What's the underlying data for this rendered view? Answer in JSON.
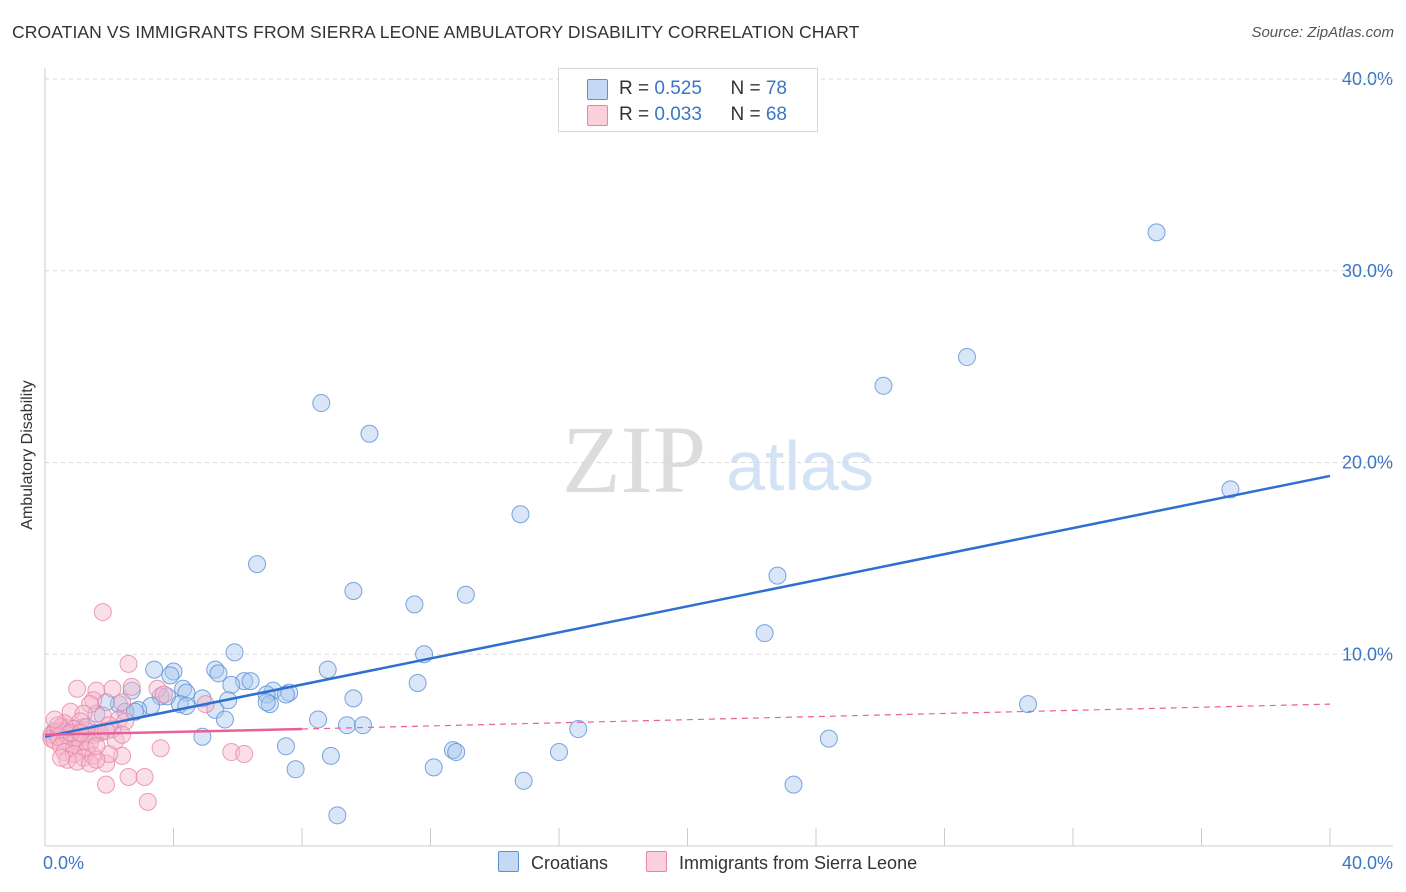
{
  "title": "CROATIAN VS IMMIGRANTS FROM SIERRA LEONE AMBULATORY DISABILITY CORRELATION CHART",
  "source": "Source: ZipAtlas.com",
  "watermark": {
    "zip": "ZIP",
    "atlas": "atlas"
  },
  "colors": {
    "blue_fill": "#a9c7ee",
    "blue_edge": "#5b8fd6",
    "blue_line": "#2e6fcf",
    "pink_fill": "#f6b8cc",
    "pink_edge": "#e984a6",
    "pink_line": "#e8609a",
    "axis_label": "#3a76c4",
    "grid": "#d9d9d9"
  },
  "legend": {
    "rows": [
      {
        "r_label": "R = ",
        "r_value": "0.525",
        "n_label": "N = ",
        "n_value": "78",
        "color": "blue"
      },
      {
        "r_label": "R = ",
        "r_value": "0.033",
        "n_label": "N = ",
        "n_value": "68",
        "color": "pink"
      }
    ]
  },
  "bottom_legend": [
    {
      "label": "Croatians",
      "color": "blue"
    },
    {
      "label": "Immigrants from Sierra Leone",
      "color": "pink"
    }
  ],
  "chart_data": {
    "type": "scatter",
    "title": "CROATIAN VS IMMIGRANTS FROM SIERRA LEONE AMBULATORY DISABILITY CORRELATION CHART",
    "xlabel": "",
    "ylabel": "Ambulatory Disability",
    "xlim": [
      0,
      40
    ],
    "ylim": [
      0,
      40
    ],
    "x_tick_labels": [
      {
        "value": 0,
        "label": "0.0%"
      },
      {
        "value": 40,
        "label": "40.0%"
      }
    ],
    "y_tick_labels": [
      {
        "value": 10,
        "label": "10.0%"
      },
      {
        "value": 20,
        "label": "20.0%"
      },
      {
        "value": 30,
        "label": "30.0%"
      },
      {
        "value": 40,
        "label": "40.0%"
      }
    ],
    "x_minor_ticks": [
      4,
      8,
      12,
      16,
      20,
      24,
      28,
      32,
      36,
      40
    ],
    "series": [
      {
        "name": "Croatians",
        "color": "blue",
        "R": 0.525,
        "N": 78,
        "trend": {
          "x": [
            0,
            40
          ],
          "y": [
            5.7,
            19.3
          ],
          "style": "solid"
        },
        "points": [
          [
            34.6,
            32.0
          ],
          [
            28.7,
            25.5
          ],
          [
            26.1,
            24.0
          ],
          [
            8.6,
            23.1
          ],
          [
            10.1,
            21.5
          ],
          [
            36.9,
            18.6
          ],
          [
            14.8,
            17.3
          ],
          [
            6.6,
            14.7
          ],
          [
            22.8,
            14.1
          ],
          [
            9.6,
            13.3
          ],
          [
            13.1,
            13.1
          ],
          [
            11.5,
            12.6
          ],
          [
            22.4,
            11.1
          ],
          [
            5.9,
            10.1
          ],
          [
            11.8,
            10.0
          ],
          [
            8.8,
            9.2
          ],
          [
            3.4,
            9.2
          ],
          [
            5.3,
            9.2
          ],
          [
            5.4,
            9.0
          ],
          [
            4.0,
            9.1
          ],
          [
            3.9,
            8.9
          ],
          [
            6.2,
            8.6
          ],
          [
            6.4,
            8.6
          ],
          [
            5.8,
            8.4
          ],
          [
            11.6,
            8.5
          ],
          [
            2.7,
            8.1
          ],
          [
            4.3,
            8.2
          ],
          [
            4.4,
            8.0
          ],
          [
            7.1,
            8.1
          ],
          [
            7.6,
            8.0
          ],
          [
            7.5,
            7.9
          ],
          [
            6.9,
            7.9
          ],
          [
            3.6,
            7.8
          ],
          [
            3.8,
            7.8
          ],
          [
            4.9,
            7.7
          ],
          [
            9.6,
            7.7
          ],
          [
            5.7,
            7.6
          ],
          [
            4.2,
            7.4
          ],
          [
            2.3,
            7.4
          ],
          [
            1.9,
            7.5
          ],
          [
            3.3,
            7.3
          ],
          [
            4.4,
            7.3
          ],
          [
            5.3,
            7.1
          ],
          [
            2.9,
            7.1
          ],
          [
            2.5,
            7.0
          ],
          [
            2.8,
            7.0
          ],
          [
            7.0,
            7.4
          ],
          [
            6.9,
            7.5
          ],
          [
            1.6,
            6.9
          ],
          [
            5.6,
            6.6
          ],
          [
            8.5,
            6.6
          ],
          [
            9.4,
            6.3
          ],
          [
            9.9,
            6.3
          ],
          [
            2.1,
            6.1
          ],
          [
            16.6,
            6.1
          ],
          [
            1.3,
            6.0
          ],
          [
            1.6,
            5.9
          ],
          [
            1.2,
            6.2
          ],
          [
            0.9,
            6.1
          ],
          [
            0.6,
            6.0
          ],
          [
            0.8,
            5.8
          ],
          [
            0.5,
            5.9
          ],
          [
            0.3,
            6.0
          ],
          [
            0.4,
            5.7
          ],
          [
            1.0,
            5.6
          ],
          [
            4.9,
            5.7
          ],
          [
            24.4,
            5.6
          ],
          [
            7.5,
            5.2
          ],
          [
            12.7,
            5.0
          ],
          [
            12.8,
            4.9
          ],
          [
            16.0,
            4.9
          ],
          [
            8.9,
            4.7
          ],
          [
            30.6,
            7.4
          ],
          [
            7.8,
            4.0
          ],
          [
            12.1,
            4.1
          ],
          [
            14.9,
            3.4
          ],
          [
            23.3,
            3.2
          ],
          [
            9.1,
            1.6
          ]
        ]
      },
      {
        "name": "Immigrants from Sierra Leone",
        "color": "pink",
        "R": 0.033,
        "N": 68,
        "trend": {
          "solid": {
            "x": [
              0,
              8
            ],
            "y": [
              5.8,
              6.1
            ]
          },
          "dashed": {
            "x": [
              8,
              40
            ],
            "y": [
              6.1,
              7.4
            ]
          }
        },
        "points": [
          [
            1.8,
            12.2
          ],
          [
            2.6,
            9.5
          ],
          [
            1.0,
            8.2
          ],
          [
            1.6,
            8.1
          ],
          [
            2.1,
            8.2
          ],
          [
            2.7,
            8.3
          ],
          [
            3.5,
            8.2
          ],
          [
            1.5,
            7.6
          ],
          [
            1.4,
            7.4
          ],
          [
            2.4,
            7.5
          ],
          [
            5.0,
            7.4
          ],
          [
            3.7,
            7.9
          ],
          [
            0.8,
            7.0
          ],
          [
            1.2,
            6.9
          ],
          [
            1.8,
            6.8
          ],
          [
            2.3,
            6.6
          ],
          [
            2.5,
            6.5
          ],
          [
            2.0,
            6.3
          ],
          [
            1.1,
            6.5
          ],
          [
            0.6,
            6.4
          ],
          [
            0.5,
            6.2
          ],
          [
            0.9,
            6.1
          ],
          [
            0.4,
            6.0
          ],
          [
            0.3,
            5.9
          ],
          [
            0.2,
            5.8
          ],
          [
            0.2,
            5.6
          ],
          [
            0.3,
            5.5
          ],
          [
            0.4,
            5.7
          ],
          [
            0.6,
            5.5
          ],
          [
            0.7,
            5.8
          ],
          [
            1.0,
            5.6
          ],
          [
            1.2,
            5.7
          ],
          [
            1.5,
            5.8
          ],
          [
            1.7,
            5.9
          ],
          [
            0.8,
            5.3
          ],
          [
            0.5,
            5.2
          ],
          [
            0.9,
            5.1
          ],
          [
            1.1,
            5.4
          ],
          [
            1.4,
            5.4
          ],
          [
            1.3,
            5.0
          ],
          [
            0.6,
            4.9
          ],
          [
            0.9,
            4.8
          ],
          [
            1.2,
            4.6
          ],
          [
            1.5,
            4.7
          ],
          [
            0.7,
            4.5
          ],
          [
            1.0,
            4.4
          ],
          [
            1.4,
            4.3
          ],
          [
            1.9,
            4.3
          ],
          [
            2.4,
            4.7
          ],
          [
            3.6,
            5.1
          ],
          [
            5.8,
            4.9
          ],
          [
            6.2,
            4.8
          ],
          [
            2.0,
            4.8
          ],
          [
            1.6,
            4.5
          ],
          [
            2.6,
            3.6
          ],
          [
            3.1,
            3.6
          ],
          [
            1.9,
            3.2
          ],
          [
            3.2,
            2.3
          ],
          [
            0.4,
            6.3
          ],
          [
            1.3,
            6.2
          ],
          [
            1.9,
            6.0
          ],
          [
            2.2,
            5.5
          ],
          [
            0.3,
            6.6
          ],
          [
            1.6,
            5.2
          ],
          [
            2.4,
            5.8
          ],
          [
            0.8,
            5.9
          ],
          [
            1.1,
            5.9
          ],
          [
            0.5,
            4.6
          ]
        ]
      }
    ]
  }
}
